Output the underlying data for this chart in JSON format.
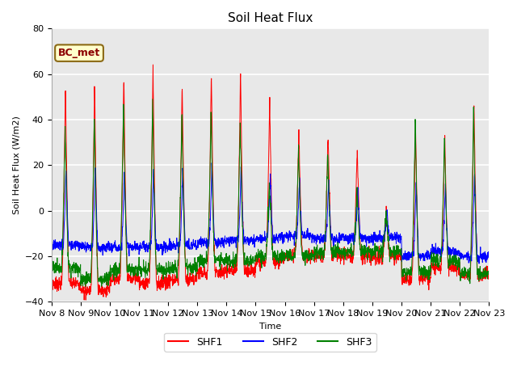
{
  "title": "Soil Heat Flux",
  "ylabel": "Soil Heat Flux (W/m2)",
  "xlabel": "Time",
  "ylim": [
    -40,
    80
  ],
  "legend_label": "BC_met",
  "series_labels": [
    "SHF1",
    "SHF2",
    "SHF3"
  ],
  "series_colors": [
    "red",
    "blue",
    "green"
  ],
  "x_tick_labels": [
    "Nov 8",
    "Nov 9",
    "Nov 10",
    "Nov 11",
    "Nov 12",
    "Nov 13",
    "Nov 14",
    "Nov 15",
    "Nov 16",
    "Nov 17",
    "Nov 18",
    "Nov 19",
    "Nov 20",
    "Nov 21",
    "Nov 22",
    "Nov 23"
  ],
  "fig_bg_color": "#ffffff",
  "plot_bg_color": "#e8e8e8",
  "grid_color": "white",
  "daily_peak_shf1": [
    57,
    57,
    60,
    65,
    58,
    61,
    63,
    49,
    37,
    35,
    29,
    1,
    37,
    34,
    49
  ],
  "daily_peak_shf3": [
    38,
    43,
    48,
    48,
    43,
    43,
    40,
    14,
    28,
    26,
    9,
    1,
    41,
    33,
    45
  ],
  "daily_trough_shf1": [
    -32,
    -35,
    -30,
    -32,
    -30,
    -27,
    -26,
    -22,
    -20,
    -20,
    -20,
    -20,
    -30,
    -25,
    -28
  ],
  "daily_trough_shf2": [
    -15,
    -16,
    -16,
    -16,
    -15,
    -14,
    -13,
    -12,
    -11,
    -12,
    -12,
    -12,
    -20,
    -18,
    -20
  ],
  "daily_trough_shf3": [
    -25,
    -30,
    -26,
    -26,
    -25,
    -22,
    -22,
    -20,
    -20,
    -18,
    -18,
    -18,
    -27,
    -22,
    -28
  ]
}
